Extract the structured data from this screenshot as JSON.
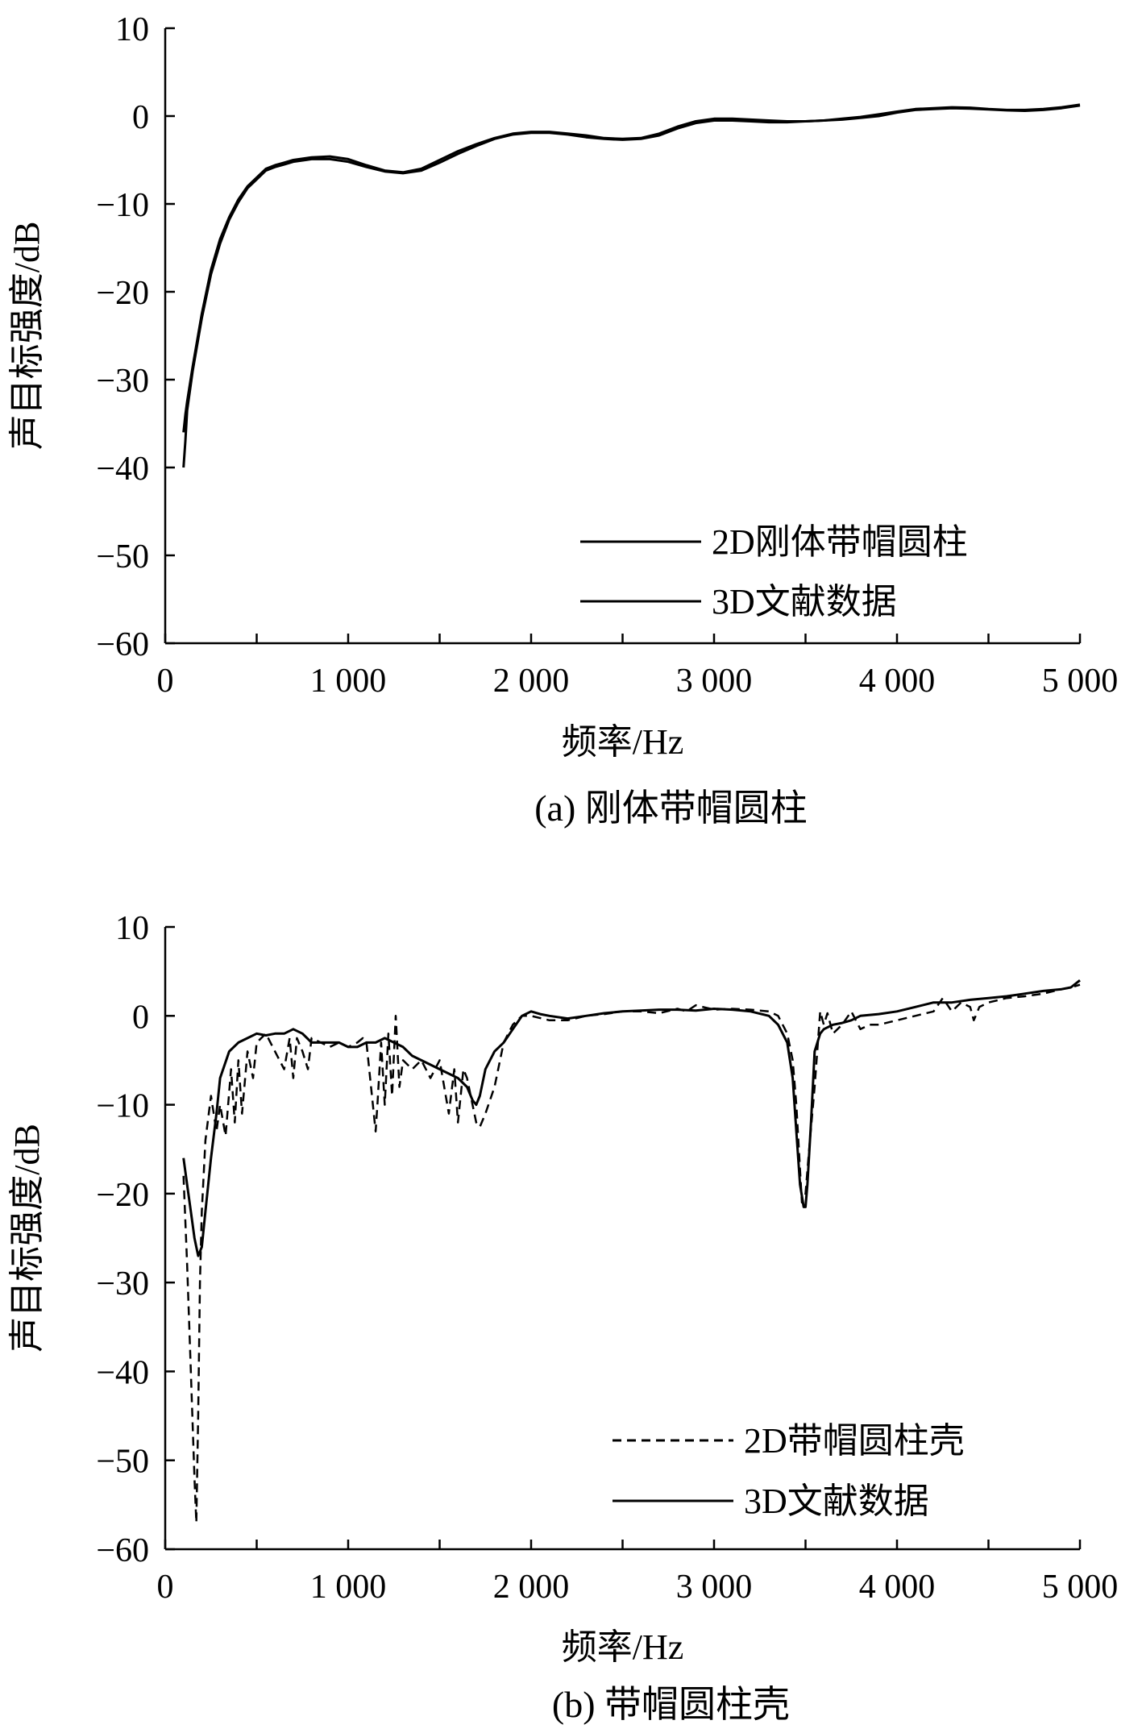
{
  "chart_data": [
    {
      "type": "line",
      "caption": "(a) 刚体带帽圆柱",
      "xlabel": "频率/Hz",
      "ylabel": "声目标强度/dB",
      "xlim": [
        0,
        5000
      ],
      "ylim": [
        -60,
        10
      ],
      "x_ticks": [
        0,
        500,
        1000,
        1500,
        2000,
        2500,
        3000,
        3500,
        4000,
        4500,
        5000
      ],
      "x_tick_labels": [
        "0",
        "1 000",
        "2 000",
        "3 000",
        "4 000",
        "5 000"
      ],
      "x_tick_label_values": [
        0,
        1000,
        2000,
        3000,
        4000,
        5000
      ],
      "y_ticks": [
        10,
        0,
        -10,
        -20,
        -30,
        -40,
        -50,
        -60
      ],
      "y_tick_labels": [
        "10",
        "0",
        "−10",
        "−20",
        "−30",
        "−40",
        "−50",
        "−60"
      ],
      "grid": false,
      "legend_position": "bottom-right",
      "series": [
        {
          "name": "2D刚体带帽圆柱",
          "style": "solid",
          "x": [
            100,
            110,
            120,
            150,
            200,
            250,
            300,
            350,
            400,
            450,
            500,
            550,
            600,
            650,
            700,
            800,
            900,
            1000,
            1100,
            1200,
            1300,
            1400,
            1500,
            1600,
            1700,
            1800,
            1900,
            2000,
            2100,
            2200,
            2300,
            2400,
            2500,
            2600,
            2700,
            2800,
            2900,
            3000,
            3100,
            3200,
            3300,
            3400,
            3500,
            3600,
            3700,
            3800,
            3900,
            4000,
            4100,
            4200,
            4300,
            4400,
            4500,
            4600,
            4700,
            4800,
            4900,
            5000
          ],
          "y": [
            -36,
            -34,
            -32.5,
            -28.5,
            -22.5,
            -17.5,
            -14,
            -11.5,
            -9.5,
            -8,
            -7,
            -6,
            -5.6,
            -5.3,
            -5,
            -4.7,
            -4.6,
            -4.9,
            -5.6,
            -6.2,
            -6.4,
            -6,
            -5,
            -4,
            -3.2,
            -2.5,
            -2,
            -1.8,
            -1.8,
            -2,
            -2.2,
            -2.5,
            -2.6,
            -2.5,
            -2,
            -1.2,
            -0.6,
            -0.3,
            -0.3,
            -0.4,
            -0.5,
            -0.6,
            -0.6,
            -0.5,
            -0.4,
            -0.2,
            0,
            0.4,
            0.7,
            0.8,
            0.9,
            0.85,
            0.75,
            0.65,
            0.6,
            0.7,
            0.9,
            1.2
          ]
        },
        {
          "name": "3D文献数据",
          "style": "solid",
          "x": [
            100,
            110,
            120,
            150,
            200,
            250,
            300,
            350,
            400,
            450,
            500,
            550,
            600,
            650,
            700,
            800,
            900,
            1000,
            1100,
            1200,
            1300,
            1400,
            1500,
            1600,
            1700,
            1800,
            1900,
            2000,
            2100,
            2200,
            2300,
            2400,
            2500,
            2600,
            2700,
            2800,
            2900,
            3000,
            3100,
            3200,
            3300,
            3400,
            3500,
            3600,
            3700,
            3800,
            3900,
            4000,
            4100,
            4200,
            4300,
            4400,
            4500,
            4600,
            4700,
            4800,
            4900,
            5000
          ],
          "y": [
            -40,
            -37,
            -33.5,
            -29,
            -23,
            -18,
            -14.5,
            -11.8,
            -9.8,
            -8.2,
            -7.2,
            -6.2,
            -5.8,
            -5.5,
            -5.2,
            -4.9,
            -4.9,
            -5.2,
            -5.8,
            -6.3,
            -6.5,
            -6.2,
            -5.3,
            -4.3,
            -3.4,
            -2.6,
            -2.1,
            -1.9,
            -1.9,
            -2.1,
            -2.4,
            -2.6,
            -2.7,
            -2.6,
            -2.2,
            -1.4,
            -0.8,
            -0.5,
            -0.5,
            -0.6,
            -0.7,
            -0.7,
            -0.6,
            -0.5,
            -0.3,
            -0.1,
            0.2,
            0.5,
            0.8,
            0.9,
            1,
            0.95,
            0.8,
            0.7,
            0.7,
            0.8,
            1,
            1.3
          ]
        }
      ]
    },
    {
      "type": "line",
      "caption": "(b) 带帽圆柱壳",
      "xlabel": "频率/Hz",
      "ylabel": "声目标强度/dB",
      "xlim": [
        0,
        5000
      ],
      "ylim": [
        -60,
        10
      ],
      "x_ticks": [
        0,
        500,
        1000,
        1500,
        2000,
        2500,
        3000,
        3500,
        4000,
        4500,
        5000
      ],
      "x_tick_labels": [
        "0",
        "1 000",
        "2 000",
        "3 000",
        "4 000",
        "5 000"
      ],
      "x_tick_label_values": [
        0,
        1000,
        2000,
        3000,
        4000,
        5000
      ],
      "y_ticks": [
        10,
        0,
        -10,
        -20,
        -30,
        -40,
        -50,
        -60
      ],
      "y_tick_labels": [
        "10",
        "0",
        "−10",
        "−20",
        "−30",
        "−40",
        "−50",
        "−60"
      ],
      "grid": false,
      "legend_position": "bottom-right",
      "series": [
        {
          "name": "2D带帽圆柱壳",
          "style": "dashed",
          "x": [
            100,
            120,
            140,
            160,
            170,
            180,
            190,
            200,
            220,
            250,
            280,
            300,
            330,
            360,
            380,
            400,
            420,
            450,
            480,
            500,
            550,
            600,
            650,
            680,
            700,
            720,
            750,
            780,
            800,
            850,
            900,
            950,
            1000,
            1050,
            1080,
            1100,
            1150,
            1160,
            1180,
            1200,
            1220,
            1240,
            1260,
            1280,
            1300,
            1350,
            1400,
            1450,
            1500,
            1550,
            1580,
            1600,
            1630,
            1650,
            1700,
            1720,
            1750,
            1800,
            1850,
            1900,
            1950,
            2000,
            2100,
            2200,
            2300,
            2400,
            2500,
            2600,
            2700,
            2800,
            2850,
            2900,
            3000,
            3100,
            3200,
            3300,
            3350,
            3400,
            3430,
            3450,
            3480,
            3500,
            3520,
            3550,
            3580,
            3600,
            3620,
            3650,
            3700,
            3750,
            3800,
            3850,
            3900,
            4000,
            4100,
            4200,
            4250,
            4300,
            4350,
            4400,
            4420,
            4450,
            4500,
            4600,
            4700,
            4800,
            4900,
            4950,
            5000
          ],
          "y": [
            -18,
            -28,
            -40,
            -52,
            -57,
            -45,
            -30,
            -22,
            -14,
            -9,
            -13,
            -10,
            -13.5,
            -6,
            -12,
            -5,
            -11,
            -4,
            -7,
            -3,
            -2,
            -4,
            -6,
            -2.5,
            -7,
            -2.5,
            -4,
            -6,
            -2.5,
            -3,
            -3.5,
            -3,
            -3.5,
            -3,
            -2.5,
            -3,
            -13,
            -10,
            -3,
            -10,
            -2,
            -9,
            0,
            -8,
            -5,
            -6,
            -5,
            -7,
            -5,
            -11,
            -6,
            -12,
            -6,
            -7,
            -12,
            -12.5,
            -11,
            -8,
            -3,
            -1,
            0,
            0,
            -0.5,
            -0.5,
            0,
            0.2,
            0.5,
            0.5,
            0.3,
            0.8,
            0.5,
            1.2,
            0.7,
            0.8,
            0.7,
            0.5,
            0,
            -2,
            -5,
            -10,
            -21,
            -20,
            -15,
            -8,
            0.5,
            -1,
            0.3,
            -2,
            -1,
            0.5,
            -1.5,
            -1,
            -1,
            -0.5,
            0,
            0.5,
            2,
            0.5,
            1.5,
            1,
            -0.5,
            1,
            1.5,
            2,
            2.2,
            2.5,
            3,
            3.2,
            3.5
          ]
        },
        {
          "name": "3D文献数据",
          "style": "solid",
          "x": [
            100,
            120,
            140,
            160,
            180,
            200,
            220,
            250,
            280,
            300,
            350,
            400,
            450,
            500,
            550,
            600,
            650,
            700,
            750,
            800,
            850,
            900,
            950,
            1000,
            1050,
            1100,
            1150,
            1200,
            1250,
            1300,
            1350,
            1400,
            1450,
            1500,
            1550,
            1600,
            1650,
            1680,
            1700,
            1720,
            1750,
            1800,
            1850,
            1900,
            1950,
            2000,
            2050,
            2100,
            2200,
            2300,
            2400,
            2500,
            2600,
            2700,
            2800,
            2900,
            3000,
            3100,
            3200,
            3300,
            3350,
            3400,
            3430,
            3450,
            3470,
            3490,
            3500,
            3510,
            3530,
            3550,
            3580,
            3600,
            3650,
            3700,
            3750,
            3800,
            3900,
            4000,
            4100,
            4200,
            4300,
            4400,
            4500,
            4600,
            4700,
            4800,
            4900,
            4950,
            5000
          ],
          "y": [
            -16,
            -19,
            -22,
            -25,
            -27,
            -26,
            -22,
            -16,
            -11,
            -7,
            -4,
            -3,
            -2.5,
            -2,
            -2.2,
            -2,
            -2,
            -1.5,
            -2,
            -3,
            -3,
            -3,
            -3,
            -3.5,
            -3.5,
            -3,
            -3,
            -2.5,
            -3,
            -3.5,
            -4.5,
            -5,
            -5.5,
            -6,
            -6.5,
            -7,
            -8,
            -9.5,
            -10,
            -9,
            -6,
            -4,
            -3,
            -1.5,
            0,
            0.5,
            0.2,
            0,
            -0.3,
            0,
            0.3,
            0.5,
            0.6,
            0.7,
            0.7,
            0.6,
            0.8,
            0.7,
            0.5,
            0,
            -1,
            -3,
            -7,
            -13,
            -19,
            -21.5,
            -21.5,
            -19,
            -12,
            -4,
            -2,
            -1.5,
            -1,
            -0.8,
            -0.5,
            0,
            0.2,
            0.5,
            1,
            1.5,
            1.5,
            1.8,
            2,
            2.2,
            2.5,
            2.8,
            3,
            3.2,
            4
          ]
        }
      ]
    }
  ]
}
